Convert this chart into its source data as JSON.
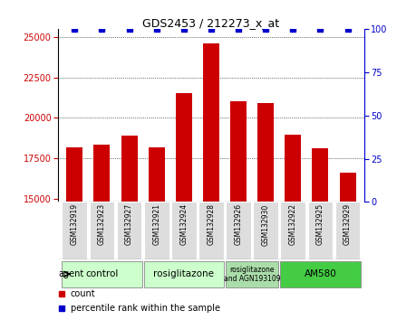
{
  "title": "GDS2453 / 212273_x_at",
  "samples": [
    "GSM132919",
    "GSM132923",
    "GSM132927",
    "GSM132921",
    "GSM132924",
    "GSM132928",
    "GSM132926",
    "GSM132930",
    "GSM132922",
    "GSM132925",
    "GSM132929"
  ],
  "counts": [
    18200,
    18350,
    18900,
    18200,
    21500,
    24600,
    21000,
    20900,
    18950,
    18100,
    16600
  ],
  "percentiles": [
    100,
    100,
    100,
    100,
    100,
    100,
    100,
    100,
    100,
    100,
    100
  ],
  "ylim_left": [
    14800,
    25500
  ],
  "ylim_right": [
    0,
    100
  ],
  "yticks_left": [
    15000,
    17500,
    20000,
    22500,
    25000
  ],
  "yticks_right": [
    0,
    25,
    50,
    75,
    100
  ],
  "bar_color": "#cc0000",
  "dot_color": "#0000cc",
  "bar_width": 0.6,
  "groups": [
    {
      "label": "control",
      "indices": [
        0,
        1,
        2
      ],
      "color": "#ccffcc"
    },
    {
      "label": "rosiglitazone",
      "indices": [
        3,
        4,
        5
      ],
      "color": "#ccffcc"
    },
    {
      "label": "rosiglitazone\nand AGN193109",
      "indices": [
        6,
        7
      ],
      "color": "#aaddaa"
    },
    {
      "label": "AM580",
      "indices": [
        8,
        9,
        10
      ],
      "color": "#44cc44"
    }
  ],
  "legend_count_color": "#cc0000",
  "legend_pct_color": "#0000cc",
  "agent_label": "agent",
  "left_tick_color": "#cc0000",
  "right_tick_color": "#0000cc",
  "background_color": "#ffffff",
  "sample_box_color": "#dddddd",
  "group_border_color": "#888888"
}
